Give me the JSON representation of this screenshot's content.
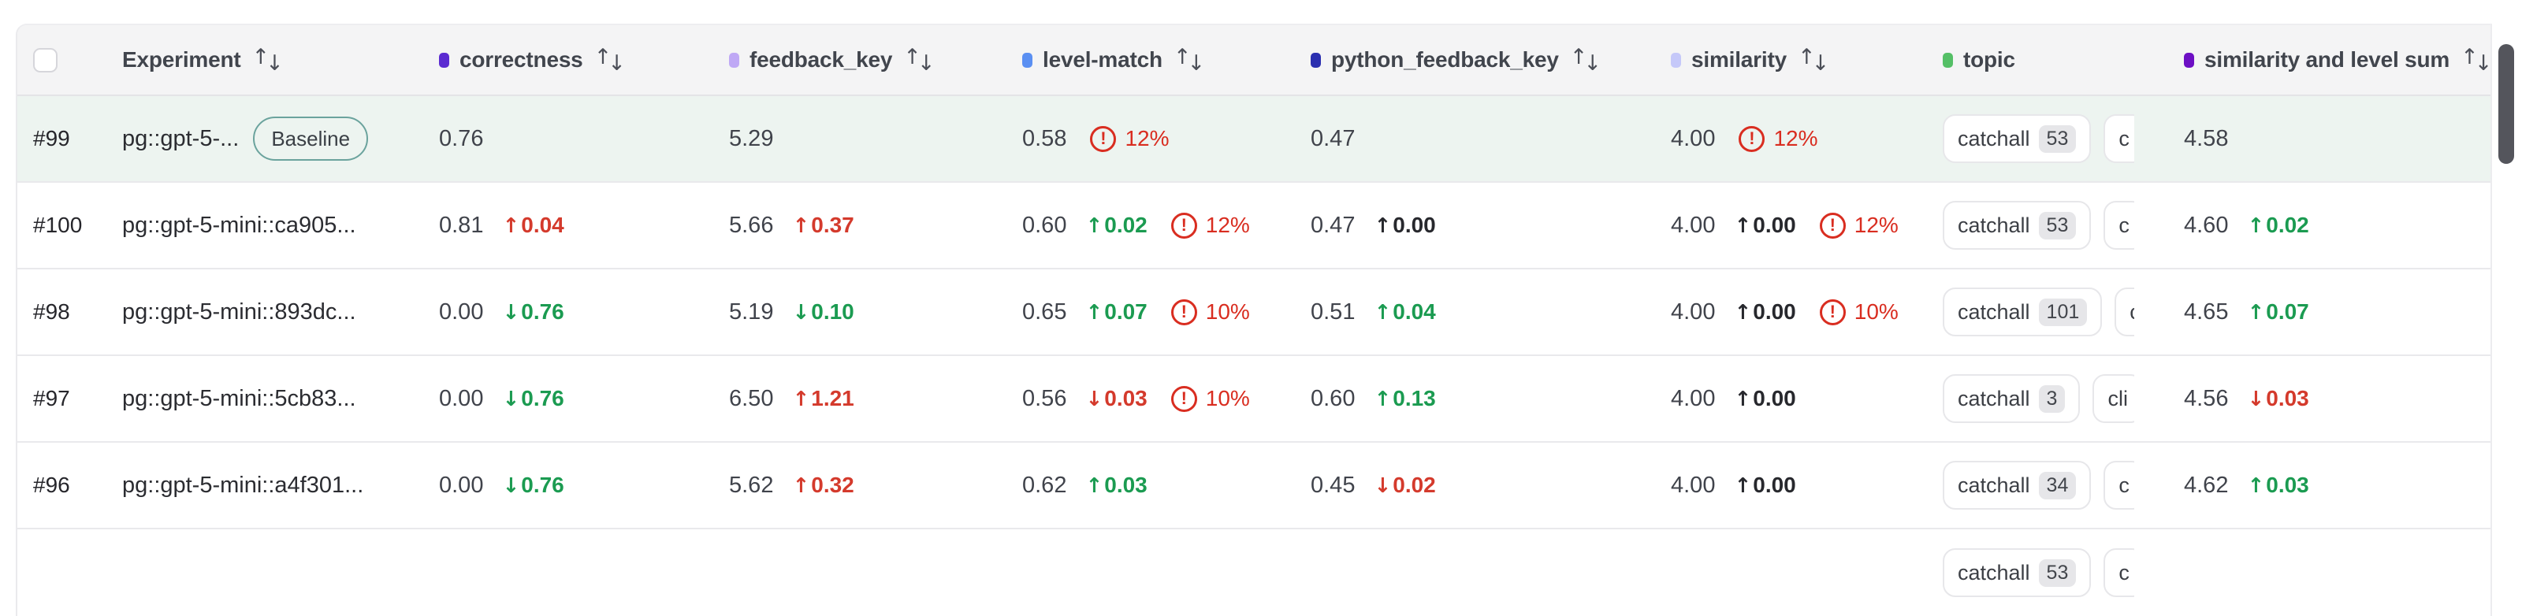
{
  "icons": {
    "sort_up": "↑",
    "sort_down": "↓",
    "warning_mark": "!"
  },
  "colors": {
    "diff_red": "#d43a2c",
    "diff_green": "#1b9b51",
    "diff_neutral": "#27282d",
    "warning_red": "#d92d20",
    "baseline_border": "#6ba39d",
    "header_bg": "#f4f4f5",
    "baseline_row_bg": "#edf4f0"
  },
  "table": {
    "columns": [
      {
        "key": "experiment",
        "label": "Experiment",
        "sortable": true
      },
      {
        "key": "correctness",
        "label": "correctness",
        "dot": "#5b2bd1",
        "sortable": true
      },
      {
        "key": "feedback_key",
        "label": "feedback_key",
        "dot": "#bfa8f5",
        "sortable": true
      },
      {
        "key": "level_match",
        "label": "level-match",
        "dot": "#5a8ff2",
        "sortable": true
      },
      {
        "key": "python_feedback_key",
        "label": "python_feedback_key",
        "dot": "#2b2fb0",
        "sortable": true
      },
      {
        "key": "similarity",
        "label": "similarity",
        "dot": "#c5c8f9",
        "sortable": true
      },
      {
        "key": "topic",
        "label": "topic",
        "dot": "#54bf66",
        "sortable": false
      },
      {
        "key": "similarity_and_level_sum",
        "label": "similarity and level sum",
        "dot": "#6d0fc4",
        "sortable": true
      }
    ]
  },
  "rows": [
    {
      "id": "#99",
      "name": "pg::gpt-5-...",
      "badge": "Baseline",
      "correctness": {
        "v": "0.76"
      },
      "feedback_key": {
        "v": "5.29"
      },
      "level_match": {
        "v": "0.58",
        "warn": "12%"
      },
      "python_feedback_key": {
        "v": "0.47"
      },
      "similarity": {
        "v": "4.00",
        "warn": "12%"
      },
      "topic": {
        "t1": "catchall",
        "c1": "53",
        "t2": "c"
      },
      "sum": {
        "v": "4.58"
      }
    },
    {
      "id": "#100",
      "name": "pg::gpt-5-mini::ca905...",
      "correctness": {
        "v": "0.81",
        "arrow": "↑",
        "delta": "0.04",
        "tone": "red"
      },
      "feedback_key": {
        "v": "5.66",
        "arrow": "↑",
        "delta": "0.37",
        "tone": "red"
      },
      "level_match": {
        "v": "0.60",
        "arrow": "↑",
        "delta": "0.02",
        "tone": "green",
        "warn": "12%"
      },
      "python_feedback_key": {
        "v": "0.47",
        "arrow": "↑",
        "delta": "0.00",
        "tone": "neutral"
      },
      "similarity": {
        "v": "4.00",
        "arrow": "↑",
        "delta": "0.00",
        "tone": "neutral",
        "warn": "12%"
      },
      "topic": {
        "t1": "catchall",
        "c1": "53",
        "t2": "c"
      },
      "sum": {
        "v": "4.60",
        "arrow": "↑",
        "delta": "0.02",
        "tone": "green"
      }
    },
    {
      "id": "#98",
      "name": "pg::gpt-5-mini::893dc...",
      "correctness": {
        "v": "0.00",
        "arrow": "↓",
        "delta": "0.76",
        "tone": "green"
      },
      "feedback_key": {
        "v": "5.19",
        "arrow": "↓",
        "delta": "0.10",
        "tone": "green"
      },
      "level_match": {
        "v": "0.65",
        "arrow": "↑",
        "delta": "0.07",
        "tone": "green",
        "warn": "10%"
      },
      "python_feedback_key": {
        "v": "0.51",
        "arrow": "↑",
        "delta": "0.04",
        "tone": "green"
      },
      "similarity": {
        "v": "4.00",
        "arrow": "↑",
        "delta": "0.00",
        "tone": "neutral",
        "warn": "10%"
      },
      "topic": {
        "t1": "catchall",
        "c1": "101",
        "t2": "c"
      },
      "sum": {
        "v": "4.65",
        "arrow": "↑",
        "delta": "0.07",
        "tone": "green"
      }
    },
    {
      "id": "#97",
      "name": "pg::gpt-5-mini::5cb83...",
      "correctness": {
        "v": "0.00",
        "arrow": "↓",
        "delta": "0.76",
        "tone": "green"
      },
      "feedback_key": {
        "v": "6.50",
        "arrow": "↑",
        "delta": "1.21",
        "tone": "red"
      },
      "level_match": {
        "v": "0.56",
        "arrow": "↓",
        "delta": "0.03",
        "tone": "red",
        "warn": "10%"
      },
      "python_feedback_key": {
        "v": "0.60",
        "arrow": "↑",
        "delta": "0.13",
        "tone": "green"
      },
      "similarity": {
        "v": "4.00",
        "arrow": "↑",
        "delta": "0.00",
        "tone": "neutral"
      },
      "topic": {
        "t1": "catchall",
        "c1": "3",
        "t2": "cli"
      },
      "sum": {
        "v": "4.56",
        "arrow": "↓",
        "delta": "0.03",
        "tone": "red"
      }
    },
    {
      "id": "#96",
      "name": "pg::gpt-5-mini::a4f301...",
      "correctness": {
        "v": "0.00",
        "arrow": "↓",
        "delta": "0.76",
        "tone": "green"
      },
      "feedback_key": {
        "v": "5.62",
        "arrow": "↑",
        "delta": "0.32",
        "tone": "red"
      },
      "level_match": {
        "v": "0.62",
        "arrow": "↑",
        "delta": "0.03",
        "tone": "green"
      },
      "python_feedback_key": {
        "v": "0.45",
        "arrow": "↓",
        "delta": "0.02",
        "tone": "red"
      },
      "similarity": {
        "v": "4.00",
        "arrow": "↑",
        "delta": "0.00",
        "tone": "neutral"
      },
      "topic": {
        "t1": "catchall",
        "c1": "34",
        "t2": "c"
      },
      "sum": {
        "v": "4.62",
        "arrow": "↑",
        "delta": "0.03",
        "tone": "green"
      }
    },
    {
      "id": "",
      "name": "",
      "topic": {
        "t1": "catchall",
        "c1": "53",
        "t2": "c"
      }
    }
  ]
}
